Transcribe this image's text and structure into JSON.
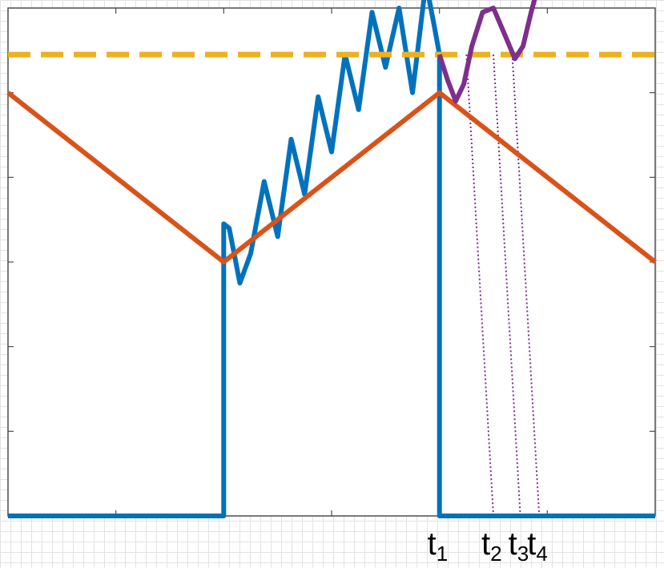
{
  "chart_data": {
    "type": "line",
    "title": "",
    "xlabel": "",
    "ylabel": "",
    "xlim": [
      0,
      12
    ],
    "ylim": [
      0,
      6
    ],
    "grid": false,
    "x_ticks": [
      {
        "base": "t",
        "sub": "1",
        "x": 8.0
      },
      {
        "base": "t",
        "sub": "2",
        "x": 9.0
      },
      {
        "base": "t",
        "sub": "3",
        "x": 9.5
      },
      {
        "base": "t",
        "sub": "4",
        "x": 9.85
      }
    ],
    "series": [
      {
        "color": "#0072BD",
        "style": "solid",
        "x": [
          0,
          4.0,
          4.0,
          4.1,
          4.3,
          4.5,
          4.75,
          5.0,
          5.25,
          5.5,
          5.75,
          6.0,
          6.25,
          6.5,
          6.75,
          7.0,
          7.25,
          7.5,
          7.75,
          7.9,
          8.0,
          8.0,
          12
        ],
        "y": [
          0,
          0,
          3.45,
          3.4,
          2.75,
          3.1,
          3.95,
          3.3,
          4.45,
          3.8,
          4.95,
          4.3,
          5.45,
          4.8,
          5.95,
          5.3,
          6.0,
          5.0,
          6.3,
          5.8,
          5.45,
          0,
          0
        ]
      },
      {
        "color": "#D95319",
        "style": "solid",
        "x": [
          0,
          4.0,
          8.0,
          12
        ],
        "y": [
          5.0,
          3.0,
          5.0,
          3.0
        ]
      },
      {
        "color": "#EDB120",
        "style": "dashed",
        "x": [
          0,
          12
        ],
        "y": [
          5.45,
          5.45
        ]
      },
      {
        "color": "#7E2F8E",
        "style": "solid",
        "x": [
          8.0,
          8.15,
          8.3,
          8.45,
          8.6,
          8.8,
          9.0,
          9.2,
          9.4,
          9.55,
          9.7,
          9.85
        ],
        "y": [
          5.45,
          5.15,
          4.9,
          5.1,
          5.55,
          5.95,
          6.0,
          5.7,
          5.4,
          5.55,
          5.95,
          6.3
        ]
      }
    ],
    "annotations": [
      {
        "type": "dotted-line",
        "color": "#7E2F8E",
        "from": [
          8.5,
          5.45
        ],
        "to": [
          9.0,
          0
        ]
      },
      {
        "type": "dotted-line",
        "color": "#7E2F8E",
        "from": [
          9.0,
          5.45
        ],
        "to": [
          9.5,
          0
        ]
      },
      {
        "type": "dotted-line",
        "color": "#7E2F8E",
        "from": [
          9.35,
          5.45
        ],
        "to": [
          9.85,
          0
        ]
      }
    ]
  }
}
